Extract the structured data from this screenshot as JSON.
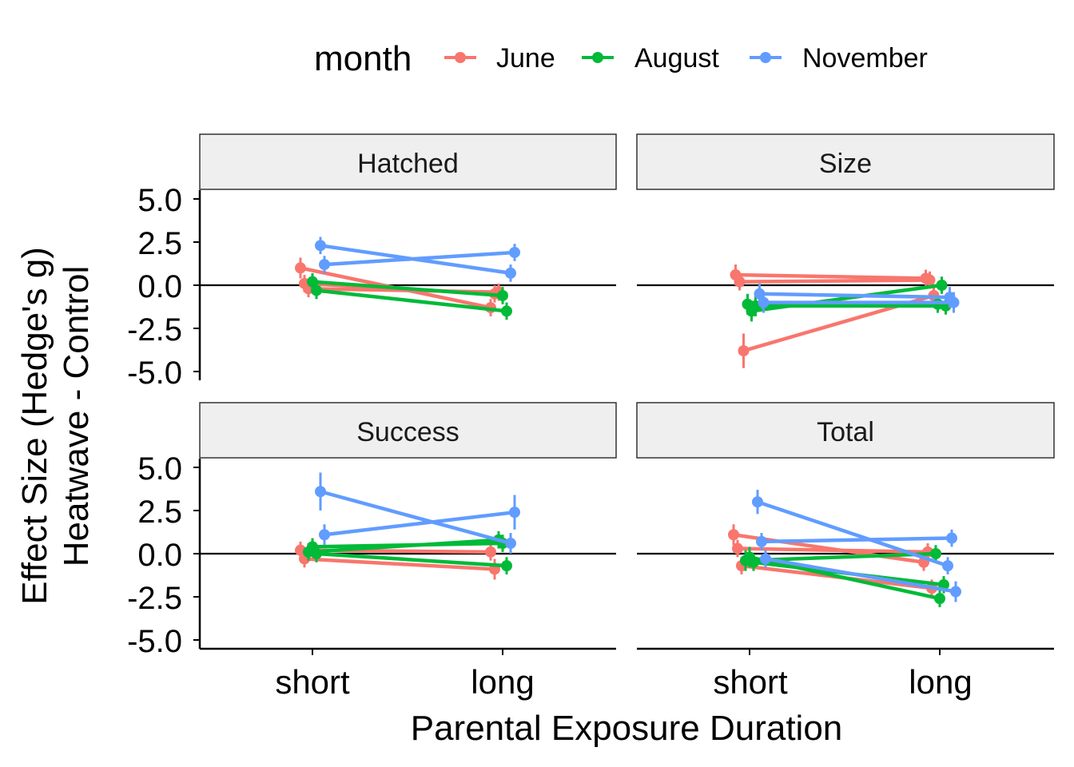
{
  "chart_data": {
    "type": "line",
    "xlabel": "Parental Exposure Duration",
    "ylabel_lines": [
      "Effect Size (Hedge's g)",
      "Heatwave - Control"
    ],
    "categories": [
      "short",
      "long"
    ],
    "ylim": [
      -5,
      5
    ],
    "yticks": [
      5,
      2.5,
      0,
      -2.5,
      -5
    ],
    "ytick_labels": [
      "5.0",
      "2.5",
      "0.0",
      "-2.5",
      "-5.0"
    ],
    "reference_line": 0,
    "grid": false,
    "legend": {
      "position": "top",
      "title": "month",
      "entries": [
        {
          "name": "June",
          "color": "#F8766D"
        },
        {
          "name": "August",
          "color": "#00BA38"
        },
        {
          "name": "November",
          "color": "#619CFF"
        }
      ]
    },
    "panels": [
      {
        "title": "Hatched",
        "series": [
          {
            "month": "June",
            "short": 1.0,
            "long": -1.3,
            "short_ci": 0.6,
            "long_ci": 0.5
          },
          {
            "month": "June",
            "short": 0.1,
            "long": -0.5,
            "short_ci": 0.5,
            "long_ci": 0.5
          },
          {
            "month": "June",
            "short": -0.2,
            "long": -0.4,
            "short_ci": 0.5,
            "long_ci": 0.5
          },
          {
            "month": "August",
            "short": 0.2,
            "long": -0.6,
            "short_ci": 0.5,
            "long_ci": 0.5
          },
          {
            "month": "August",
            "short": -0.3,
            "long": -1.5,
            "short_ci": 0.5,
            "long_ci": 0.5
          },
          {
            "month": "November",
            "short": 2.3,
            "long": 0.7,
            "short_ci": 0.5,
            "long_ci": 0.5
          },
          {
            "month": "November",
            "short": 1.2,
            "long": 1.9,
            "short_ci": 0.5,
            "long_ci": 0.5
          }
        ]
      },
      {
        "title": "Size",
        "series": [
          {
            "month": "June",
            "short": 0.6,
            "long": 0.4,
            "short_ci": 0.6,
            "long_ci": 0.5
          },
          {
            "month": "June",
            "short": 0.2,
            "long": 0.3,
            "short_ci": 0.5,
            "long_ci": 0.5
          },
          {
            "month": "June",
            "short": -3.8,
            "long": -0.6,
            "short_ci": 1.0,
            "long_ci": 0.5
          },
          {
            "month": "August",
            "short": -1.1,
            "long": -1.1,
            "short_ci": 0.6,
            "long_ci": 0.5
          },
          {
            "month": "August",
            "short": -1.5,
            "long": 0.0,
            "short_ci": 0.6,
            "long_ci": 0.5
          },
          {
            "month": "August",
            "short": -1.2,
            "long": -1.2,
            "short_ci": 0.6,
            "long_ci": 0.5
          },
          {
            "month": "November",
            "short": -0.5,
            "long": -0.7,
            "short_ci": 0.6,
            "long_ci": 0.6
          },
          {
            "month": "November",
            "short": -1.0,
            "long": -1.0,
            "short_ci": 0.6,
            "long_ci": 0.6
          }
        ]
      },
      {
        "title": "Success",
        "series": [
          {
            "month": "June",
            "short": 0.2,
            "long": 0.1,
            "short_ci": 0.5,
            "long_ci": 0.5
          },
          {
            "month": "June",
            "short": -0.3,
            "long": -0.9,
            "short_ci": 0.5,
            "long_ci": 0.6
          },
          {
            "month": "August",
            "short": 0.1,
            "long": 0.8,
            "short_ci": 0.5,
            "long_ci": 0.5
          },
          {
            "month": "August",
            "short": 0.4,
            "long": 0.6,
            "short_ci": 0.5,
            "long_ci": 0.5
          },
          {
            "month": "August",
            "short": 0.0,
            "long": -0.7,
            "short_ci": 0.5,
            "long_ci": 0.5
          },
          {
            "month": "November",
            "short": 3.6,
            "long": 0.6,
            "short_ci": 1.1,
            "long_ci": 0.6
          },
          {
            "month": "November",
            "short": 1.1,
            "long": 2.4,
            "short_ci": 0.6,
            "long_ci": 1.0
          }
        ]
      },
      {
        "title": "Total",
        "series": [
          {
            "month": "June",
            "short": 1.1,
            "long": -0.5,
            "short_ci": 0.6,
            "long_ci": 0.5
          },
          {
            "month": "June",
            "short": 0.3,
            "long": 0.1,
            "short_ci": 0.5,
            "long_ci": 0.5
          },
          {
            "month": "June",
            "short": -0.7,
            "long": -2.0,
            "short_ci": 0.5,
            "long_ci": 0.5
          },
          {
            "month": "August",
            "short": -0.4,
            "long": 0.0,
            "short_ci": 0.6,
            "long_ci": 0.5
          },
          {
            "month": "August",
            "short": -0.2,
            "long": -2.6,
            "short_ci": 0.6,
            "long_ci": 0.5
          },
          {
            "month": "August",
            "short": -0.5,
            "long": -1.8,
            "short_ci": 0.5,
            "long_ci": 0.5
          },
          {
            "month": "November",
            "short": 3.0,
            "long": -0.7,
            "short_ci": 0.7,
            "long_ci": 0.5
          },
          {
            "month": "November",
            "short": 0.7,
            "long": 0.9,
            "short_ci": 0.5,
            "long_ci": 0.5
          },
          {
            "month": "November",
            "short": -0.3,
            "long": -2.2,
            "short_ci": 0.5,
            "long_ci": 0.6
          }
        ]
      }
    ]
  }
}
